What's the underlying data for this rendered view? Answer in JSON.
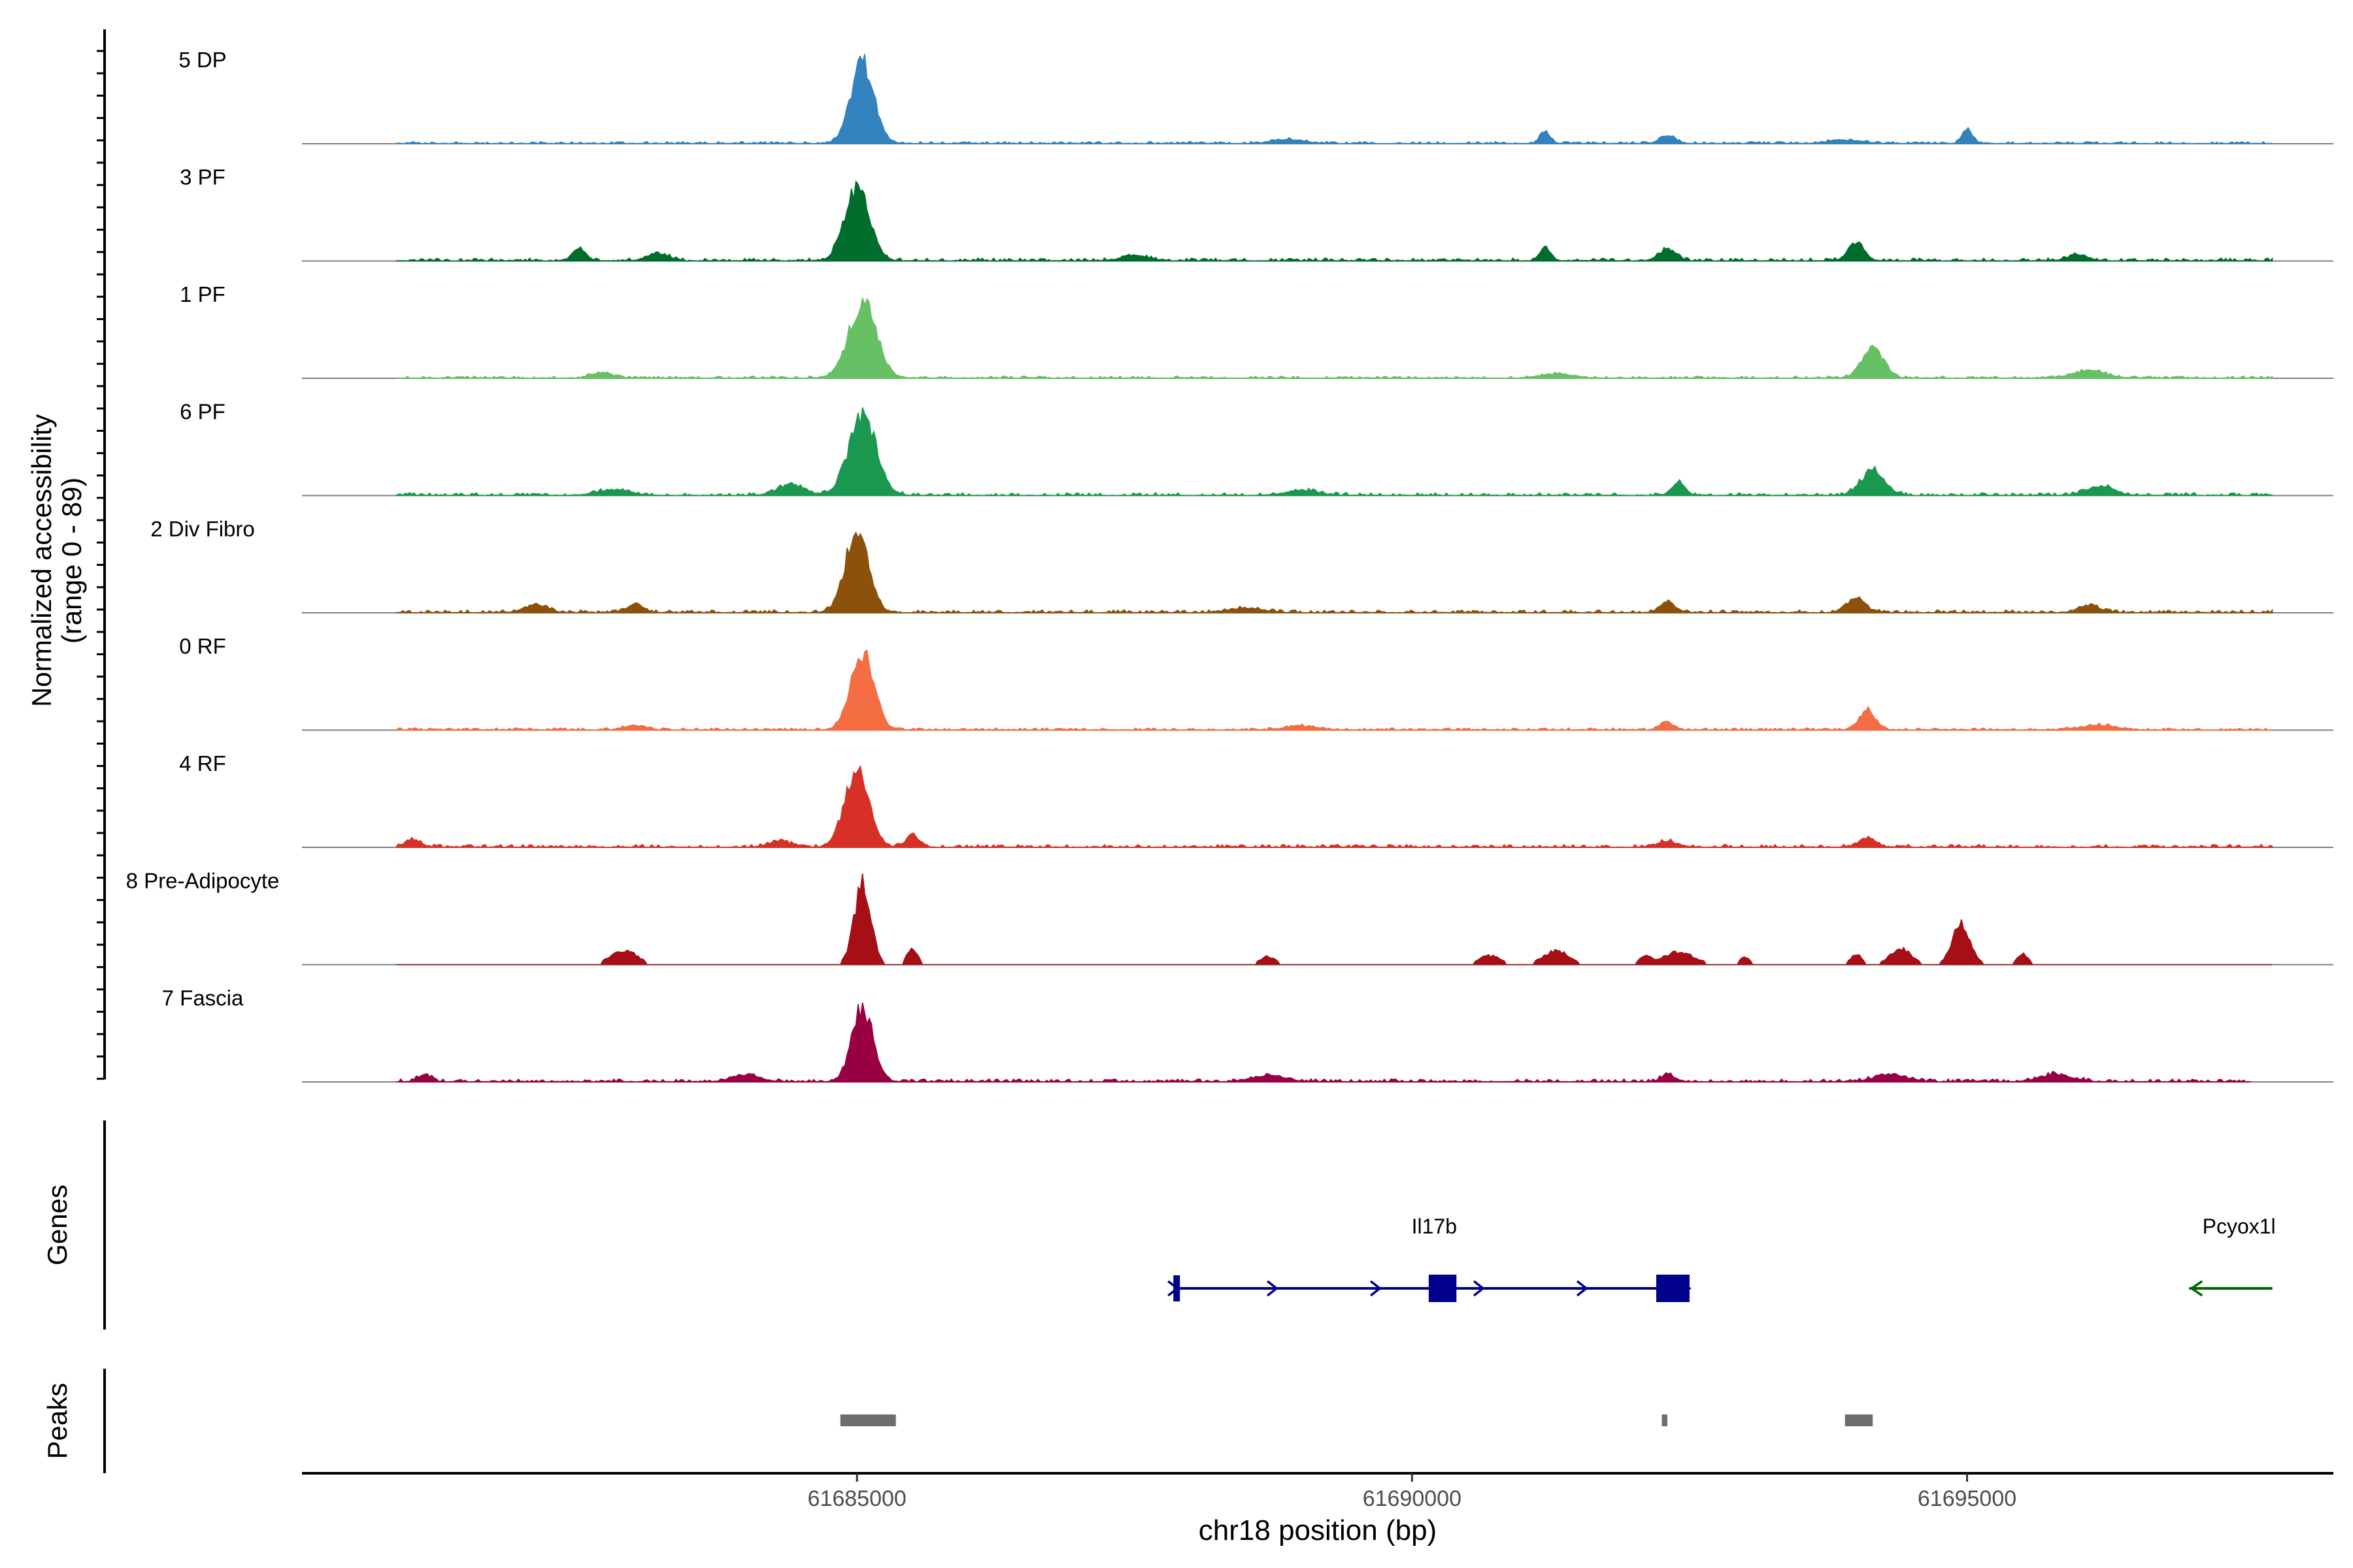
{
  "chart_data": {
    "type": "area",
    "ylabel_lines": [
      "Normalized accessibility",
      "(range 0 - 89)"
    ],
    "xlabel": "chr18 position (bp)",
    "xlim": [
      61680000,
      61698300
    ],
    "ylim": [
      0,
      89
    ],
    "x_ticks": [
      {
        "value": 61685000,
        "label": "61685000"
      },
      {
        "value": 61690000,
        "label": "61690000"
      },
      {
        "value": 61695000,
        "label": "61695000"
      }
    ],
    "tracks": [
      {
        "name": "5 DP",
        "color": "#3182BD",
        "start": 61680850,
        "end": 61697750,
        "main_peak": 89,
        "base": 3,
        "peaks": [
          [
            61685050,
            89,
            220
          ],
          [
            61691200,
            14,
            90
          ],
          [
            61692300,
            9,
            140
          ],
          [
            61695000,
            16,
            90
          ],
          [
            61688900,
            4,
            300
          ],
          [
            61693900,
            4,
            300
          ]
        ]
      },
      {
        "name": "3 PF",
        "color": "#006D2C",
        "start": 61680850,
        "end": 61697750,
        "main_peak": 80,
        "base": 4,
        "peaks": [
          [
            61685000,
            80,
            230
          ],
          [
            61682500,
            14,
            120
          ],
          [
            61683200,
            8,
            200
          ],
          [
            61691200,
            13,
            110
          ],
          [
            61692300,
            13,
            160
          ],
          [
            61694000,
            20,
            150
          ],
          [
            61696000,
            6,
            200
          ],
          [
            61687500,
            6,
            250
          ]
        ]
      },
      {
        "name": "1 PF",
        "color": "#66C164",
        "start": 61680850,
        "end": 61697750,
        "main_peak": 84,
        "base": 3,
        "peaks": [
          [
            61685050,
            84,
            260
          ],
          [
            61694150,
            34,
            200
          ],
          [
            61696100,
            8,
            300
          ],
          [
            61682700,
            6,
            200
          ],
          [
            61691300,
            5,
            300
          ]
        ]
      },
      {
        "name": "6 PF",
        "color": "#1A9850",
        "start": 61680850,
        "end": 61697750,
        "main_peak": 87,
        "base": 4,
        "peaks": [
          [
            61685050,
            87,
            260
          ],
          [
            61684400,
            12,
            250
          ],
          [
            61692400,
            14,
            120
          ],
          [
            61694150,
            28,
            220
          ],
          [
            61696200,
            10,
            250
          ],
          [
            61682800,
            6,
            300
          ],
          [
            61689000,
            5,
            300
          ]
        ]
      },
      {
        "name": "2 Div Fibro",
        "color": "#8C510A",
        "start": 61680850,
        "end": 61697750,
        "main_peak": 89,
        "base": 4,
        "peaks": [
          [
            61685000,
            89,
            220
          ],
          [
            61682100,
            9,
            200
          ],
          [
            61683000,
            9,
            150
          ],
          [
            61692300,
            11,
            150
          ],
          [
            61694000,
            16,
            170
          ],
          [
            61696100,
            8,
            200
          ],
          [
            61688500,
            5,
            300
          ]
        ]
      },
      {
        "name": "0 RF",
        "color": "#F46D43",
        "start": 61680850,
        "end": 61697750,
        "main_peak": 84,
        "base": 3,
        "peaks": [
          [
            61685050,
            84,
            220
          ],
          [
            61694100,
            22,
            150
          ],
          [
            61692300,
            8,
            120
          ],
          [
            61683000,
            5,
            200
          ],
          [
            61689000,
            4,
            300
          ],
          [
            61696200,
            5,
            300
          ]
        ]
      },
      {
        "name": "4 RF",
        "color": "#D73027",
        "start": 61680850,
        "end": 61697750,
        "main_peak": 82,
        "base": 4,
        "peaks": [
          [
            61685000,
            82,
            230
          ],
          [
            61685500,
            14,
            120
          ],
          [
            61681000,
            8,
            150
          ],
          [
            61684300,
            7,
            200
          ],
          [
            61694100,
            10,
            150
          ],
          [
            61692300,
            6,
            200
          ]
        ]
      },
      {
        "name": "8 Pre-Adipocyte",
        "color": "#A50F15",
        "start": 61680850,
        "end": 61697750,
        "main_peak": 89,
        "base": 0,
        "peaks": [
          [
            61685050,
            89,
            160
          ],
          [
            61685500,
            18,
            100
          ],
          [
            61682900,
            16,
            250
          ],
          [
            61694950,
            45,
            170
          ],
          [
            61694400,
            18,
            200
          ],
          [
            61694000,
            12,
            100
          ],
          [
            61692400,
            14,
            300
          ],
          [
            61691300,
            15,
            250
          ],
          [
            61690700,
            10,
            200
          ],
          [
            61688700,
            9,
            150
          ],
          [
            61695500,
            12,
            100
          ],
          [
            61693000,
            8,
            100
          ],
          [
            61692100,
            9,
            100
          ]
        ]
      },
      {
        "name": "7 Fascia",
        "color": "#980043",
        "start": 61680850,
        "end": 61697550,
        "main_peak": 82,
        "base": 4,
        "peaks": [
          [
            61685050,
            82,
            200
          ],
          [
            61681100,
            8,
            120
          ],
          [
            61684000,
            8,
            250
          ],
          [
            61692300,
            8,
            120
          ],
          [
            61694300,
            8,
            300
          ],
          [
            61695800,
            8,
            300
          ],
          [
            61688700,
            7,
            300
          ]
        ]
      }
    ],
    "genes": [
      {
        "name": "Il17b",
        "strand": "+",
        "start": 61687850,
        "end": 61692500,
        "color": "#00008B",
        "exons": [
          [
            61687850,
            61687900
          ],
          [
            61690150,
            61690400
          ],
          [
            61692200,
            61692500
          ]
        ],
        "label_pos": 61690200
      },
      {
        "name": "Pcyox1l",
        "strand": "-",
        "start": 61697000,
        "end": 61697750,
        "color": "#006400",
        "exons": [],
        "label_pos": 61697450
      }
    ],
    "peaks_track": [
      [
        61684850,
        61685350
      ],
      [
        61692250,
        61692300
      ],
      [
        61693900,
        61694150
      ]
    ],
    "panel_labels": {
      "genes": "Genes",
      "peaks": "Peaks"
    }
  }
}
